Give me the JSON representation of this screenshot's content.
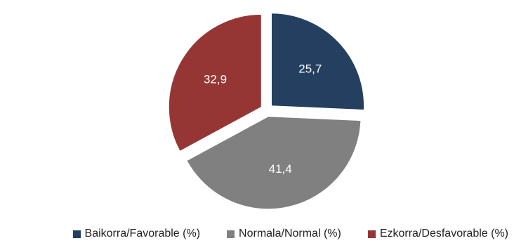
{
  "chart_data": {
    "type": "pie",
    "title": "",
    "legend_position": "bottom",
    "categories": [
      "Baikorra/Favorable (%)",
      "Normala/Normal (%)",
      "Ezkorra/Desfavorable (%)"
    ],
    "values": [
      25.7,
      41.4,
      32.9
    ],
    "value_labels": [
      "25,7",
      "41,4",
      "32,9"
    ],
    "colors": [
      "#243F60",
      "#808080",
      "#963634"
    ],
    "exploded": true
  }
}
